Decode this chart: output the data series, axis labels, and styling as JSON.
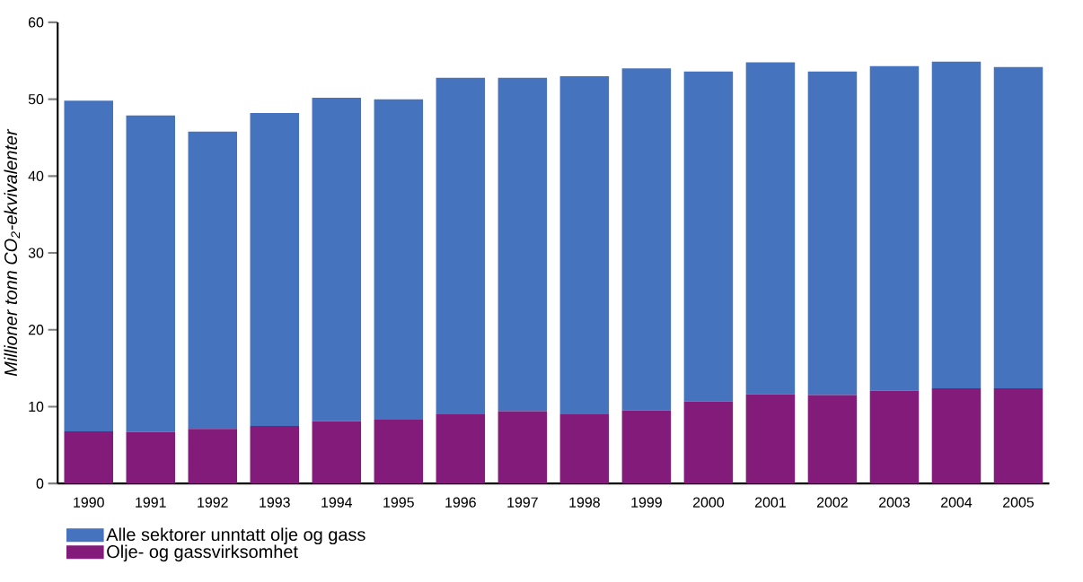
{
  "chart_data": {
    "type": "bar",
    "stacked": true,
    "ylabel": "Millioner tonn CO$_{2}$-ekvivalenter",
    "categories": [
      "1990",
      "1991",
      "1992",
      "1993",
      "1994",
      "1995",
      "1996",
      "1997",
      "1998",
      "1999",
      "2000",
      "2001",
      "2002",
      "2003",
      "2004",
      "2005"
    ],
    "series": [
      {
        "name": "Olje- og gassvirksomhet",
        "color": "#821b7a",
        "values": [
          6.8,
          6.7,
          7.1,
          7.5,
          8.1,
          8.3,
          9.0,
          9.4,
          9.0,
          9.5,
          10.7,
          11.6,
          11.5,
          12.1,
          12.4,
          12.4
        ]
      },
      {
        "name": "Alle sektorer unntatt olje og gass",
        "color": "#4673bd",
        "values": [
          43.0,
          41.2,
          38.7,
          40.7,
          42.1,
          41.7,
          43.8,
          43.4,
          44.0,
          44.5,
          42.9,
          43.2,
          42.1,
          42.2,
          42.5,
          41.8
        ]
      }
    ],
    "ylim": [
      0,
      60
    ],
    "yticks": [
      0,
      10,
      20,
      30,
      40,
      50,
      60
    ],
    "legend": "bottom"
  }
}
